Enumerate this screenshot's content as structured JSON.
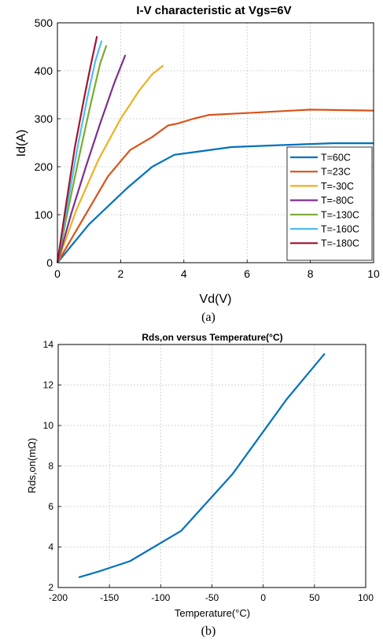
{
  "chart_data": [
    {
      "type": "line",
      "title": "I-V characteristic at Vgs=6V",
      "xlabel": "Vd(V)",
      "ylabel": "Id(A)",
      "xlim": [
        0,
        10
      ],
      "ylim": [
        0,
        500
      ],
      "xticks": [
        0,
        2,
        4,
        6,
        8,
        10
      ],
      "yticks": [
        0,
        100,
        200,
        300,
        400,
        500
      ],
      "grid": true,
      "legend_position": "bottom-right",
      "caption": "(a)",
      "series": [
        {
          "name": "T=60C",
          "color": "#0072BD",
          "x": [
            0,
            1.0,
            2.2,
            3.0,
            3.7,
            4.5,
            5.5,
            7.0,
            8.7,
            10
          ],
          "y": [
            0,
            80,
            155,
            200,
            225,
            232,
            241,
            245,
            249,
            249
          ]
        },
        {
          "name": "T=23C",
          "color": "#D95319",
          "x": [
            0,
            0.8,
            1.6,
            2.3,
            3.0,
            3.5,
            3.8,
            4.3,
            4.8,
            6.0,
            8.0,
            10
          ],
          "y": [
            0,
            90,
            180,
            235,
            262,
            286,
            290,
            300,
            308,
            312,
            319,
            317
          ]
        },
        {
          "name": "T=-30C",
          "color": "#EDB120",
          "x": [
            0,
            0.6,
            1.3,
            2.0,
            2.6,
            3.0,
            3.35
          ],
          "y": [
            0,
            110,
            215,
            300,
            360,
            393,
            411
          ]
        },
        {
          "name": "T=-80C",
          "color": "#7E2F8E",
          "x": [
            0,
            0.45,
            0.9,
            1.35,
            1.8,
            2.15
          ],
          "y": [
            0,
            105,
            200,
            290,
            375,
            433
          ]
        },
        {
          "name": "T=-130C",
          "color": "#77AC30",
          "x": [
            0,
            0.35,
            0.7,
            1.05,
            1.35,
            1.55
          ],
          "y": [
            0,
            115,
            225,
            330,
            415,
            453
          ]
        },
        {
          "name": "T=-160C",
          "color": "#4DBEEE",
          "x": [
            0,
            0.3,
            0.65,
            0.95,
            1.2,
            1.4
          ],
          "y": [
            0,
            115,
            245,
            345,
            420,
            463
          ]
        },
        {
          "name": "T=-180C",
          "color": "#A2142F",
          "x": [
            0,
            0.25,
            0.55,
            0.85,
            1.05,
            1.25
          ],
          "y": [
            0,
            110,
            240,
            345,
            410,
            472
          ]
        }
      ]
    },
    {
      "type": "line",
      "title": "Rds,on versus Temperature(°C)",
      "xlabel": "Temperature(°C)",
      "ylabel": "Rds,on(mΩ)",
      "xlim": [
        -200,
        100
      ],
      "ylim": [
        2,
        14
      ],
      "xticks": [
        -200,
        -150,
        -100,
        -50,
        0,
        50,
        100
      ],
      "yticks": [
        2,
        4,
        6,
        8,
        10,
        12,
        14
      ],
      "grid": true,
      "caption": "(b)",
      "series": [
        {
          "color": "#0072BD",
          "x": [
            -180,
            -160,
            -130,
            -80,
            -30,
            23,
            60
          ],
          "y": [
            2.5,
            2.8,
            3.3,
            4.8,
            7.6,
            11.3,
            13.55
          ]
        }
      ]
    }
  ]
}
